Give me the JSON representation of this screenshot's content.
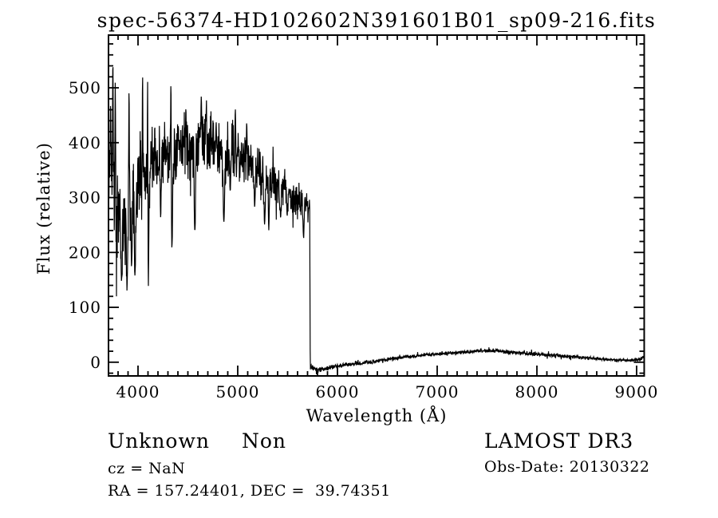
{
  "window": {
    "background_color": "#ffffff",
    "foreground_color": "#000000"
  },
  "annotations": {
    "class_label": "Unknown",
    "subclass_label": "Non",
    "cz_line": "cz = NaN",
    "radec_line": "RA = 157.24401, DEC =  39.74351",
    "survey_label": "LAMOST DR3",
    "obs_date_line": "Obs-Date: 20130322"
  },
  "chart_data": {
    "type": "line",
    "title": "spec-56374-HD102602N391601B01_sp09-216.fits",
    "xlabel": "Wavelength (Å)",
    "ylabel": "Flux (relative)",
    "xlim": [
      3704,
      9076
    ],
    "ylim": [
      -25,
      596
    ],
    "grid": false,
    "legend": "none",
    "line_color": "#000000",
    "x_ticks": [
      {
        "value": 4000,
        "label": "4000"
      },
      {
        "value": 5000,
        "label": "5000"
      },
      {
        "value": 6000,
        "label": "6000"
      },
      {
        "value": 7000,
        "label": "7000"
      },
      {
        "value": 8000,
        "label": "8000"
      },
      {
        "value": 9000,
        "label": "9000"
      }
    ],
    "y_ticks": [
      {
        "value": 0,
        "label": "0"
      },
      {
        "value": 100,
        "label": "100"
      },
      {
        "value": 200,
        "label": "200"
      },
      {
        "value": 300,
        "label": "300"
      },
      {
        "value": 400,
        "label": "400"
      },
      {
        "value": 500,
        "label": "500"
      }
    ],
    "x_minor_step": 100,
    "y_minor_step": 20,
    "series": [
      {
        "name": "spectrum",
        "description": "Noisy stellar spectrum: high flux 3700-5720 A, sharp drop to ~0 at 5725 A, broad low bump peaking ~20 near 7500 A",
        "envelope_points": [
          [
            3704,
            310,
            120
          ],
          [
            3735,
            355,
            130
          ],
          [
            3765,
            330,
            115
          ],
          [
            3800,
            265,
            95
          ],
          [
            3840,
            245,
            90
          ],
          [
            3880,
            255,
            95
          ],
          [
            3920,
            285,
            95
          ],
          [
            3960,
            295,
            90
          ],
          [
            4000,
            320,
            95
          ],
          [
            4040,
            340,
            100
          ],
          [
            4090,
            345,
            95
          ],
          [
            4150,
            368,
            70
          ],
          [
            4250,
            382,
            65
          ],
          [
            4350,
            382,
            72
          ],
          [
            4450,
            392,
            65
          ],
          [
            4550,
            396,
            68
          ],
          [
            4650,
            405,
            60
          ],
          [
            4750,
            400,
            58
          ],
          [
            4861,
            383,
            62
          ],
          [
            4950,
            386,
            52
          ],
          [
            5050,
            372,
            52
          ],
          [
            5150,
            358,
            52
          ],
          [
            5250,
            345,
            52
          ],
          [
            5350,
            331,
            48
          ],
          [
            5450,
            318,
            45
          ],
          [
            5550,
            305,
            42
          ],
          [
            5650,
            292,
            40
          ],
          [
            5722,
            281,
            32
          ],
          [
            5727,
            -8,
            7
          ],
          [
            5800,
            -14,
            6
          ],
          [
            5900,
            -11,
            5
          ],
          [
            6000,
            -7,
            5
          ],
          [
            6100,
            -4,
            4
          ],
          [
            6250,
            -2,
            4
          ],
          [
            6400,
            2,
            4
          ],
          [
            6550,
            6,
            4
          ],
          [
            6700,
            10,
            4
          ],
          [
            6850,
            13,
            4
          ],
          [
            7000,
            15,
            4
          ],
          [
            7150,
            17,
            4
          ],
          [
            7300,
            19,
            4
          ],
          [
            7450,
            21,
            4
          ],
          [
            7600,
            20,
            4
          ],
          [
            7750,
            18,
            4
          ],
          [
            7900,
            16,
            4
          ],
          [
            8050,
            14,
            4
          ],
          [
            8200,
            12,
            4
          ],
          [
            8350,
            10,
            4
          ],
          [
            8500,
            8,
            3
          ],
          [
            8650,
            6,
            3
          ],
          [
            8800,
            4,
            3
          ],
          [
            8950,
            3,
            3
          ],
          [
            9030,
            5,
            3
          ],
          [
            9076,
            11,
            3
          ]
        ],
        "absorption_dips": [
          [
            3835,
            150,
            9
          ],
          [
            3890,
            132,
            9
          ],
          [
            3935,
            178,
            7
          ],
          [
            3970,
            158,
            8
          ],
          [
            4101,
            124,
            10
          ],
          [
            4227,
            268,
            7
          ],
          [
            4340,
            208,
            10
          ],
          [
            4570,
            236,
            9
          ],
          [
            4861,
            254,
            10
          ],
          [
            4925,
            312,
            7
          ],
          [
            5170,
            282,
            8
          ],
          [
            5270,
            250,
            10
          ],
          [
            5312,
            242,
            7
          ],
          [
            5430,
            262,
            8
          ],
          [
            5496,
            266,
            7
          ],
          [
            5660,
            226,
            8
          ]
        ],
        "emission_spikes": [
          [
            3725,
            470,
            5
          ],
          [
            3748,
            544,
            5
          ],
          [
            3772,
            512,
            4
          ],
          [
            3910,
            502,
            4
          ],
          [
            4046,
            520,
            5
          ],
          [
            4096,
            516,
            4
          ],
          [
            4330,
            514,
            4
          ],
          [
            4480,
            468,
            4
          ],
          [
            4635,
            490,
            4
          ],
          [
            4686,
            478,
            4
          ],
          [
            4976,
            462,
            4
          ],
          [
            5090,
            438,
            4
          ]
        ]
      }
    ]
  }
}
